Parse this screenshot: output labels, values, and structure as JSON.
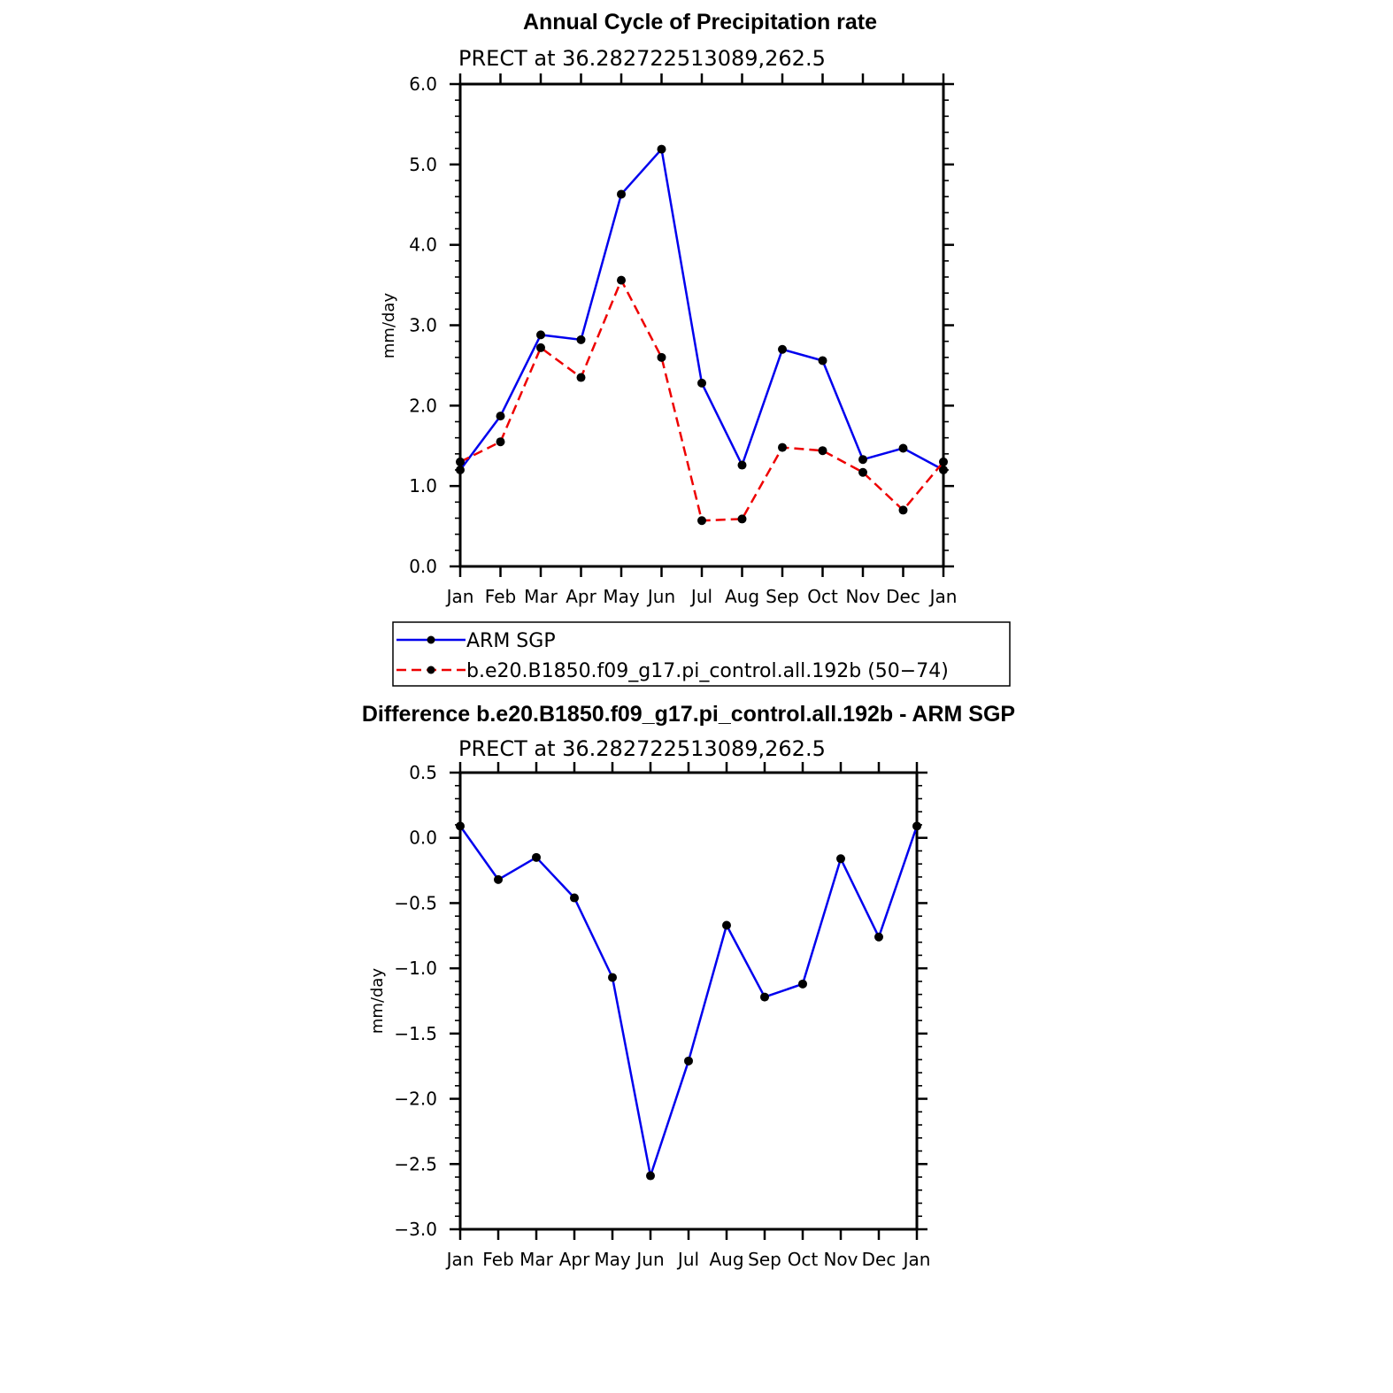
{
  "chart_data": [
    {
      "type": "line",
      "title": "Annual Cycle of Precipitation rate",
      "subtitle": "PRECT at 36.282722513089,262.5",
      "xlabel": "",
      "ylabel": "mm/day",
      "categories": [
        "Jan",
        "Feb",
        "Mar",
        "Apr",
        "May",
        "Jun",
        "Jul",
        "Aug",
        "Sep",
        "Oct",
        "Nov",
        "Dec",
        "Jan"
      ],
      "ylim": [
        0,
        6
      ],
      "yticks": [
        "0.0",
        "1.0",
        "2.0",
        "3.0",
        "4.0",
        "5.0",
        "6.0"
      ],
      "legend_position": "bottom",
      "series": [
        {
          "name": "ARM SGP",
          "color": "#0000ee",
          "dash": "solid",
          "values": [
            1.2,
            1.87,
            2.88,
            2.82,
            4.63,
            5.19,
            2.28,
            1.26,
            2.7,
            2.56,
            1.33,
            1.47,
            1.2
          ]
        },
        {
          "name": "b.e20.B1850.f09_g17.pi_control.all.192b (50−74)",
          "color": "#ee0000",
          "dash": "dashed",
          "values": [
            1.3,
            1.55,
            2.72,
            2.35,
            3.56,
            2.6,
            0.57,
            0.59,
            1.48,
            1.44,
            1.17,
            0.7,
            1.3
          ]
        }
      ]
    },
    {
      "type": "line",
      "title": "Difference b.e20.B1850.f09_g17.pi_control.all.192b - ARM SGP",
      "subtitle": "PRECT at 36.282722513089,262.5",
      "xlabel": "",
      "ylabel": "mm/day",
      "categories": [
        "Jan",
        "Feb",
        "Mar",
        "Apr",
        "May",
        "Jun",
        "Jul",
        "Aug",
        "Sep",
        "Oct",
        "Nov",
        "Dec",
        "Jan"
      ],
      "ylim": [
        -3,
        0.5
      ],
      "yticks": [
        "−3.0",
        "−2.5",
        "−2.0",
        "−1.5",
        "−1.0",
        "−0.5",
        "0.0",
        "0.5"
      ],
      "series": [
        {
          "name": "Difference",
          "color": "#0000ee",
          "dash": "solid",
          "values": [
            0.09,
            -0.32,
            -0.15,
            -0.46,
            -1.07,
            -2.59,
            -1.71,
            -0.67,
            -1.22,
            -1.12,
            -0.16,
            -0.76,
            0.09
          ]
        }
      ]
    }
  ]
}
